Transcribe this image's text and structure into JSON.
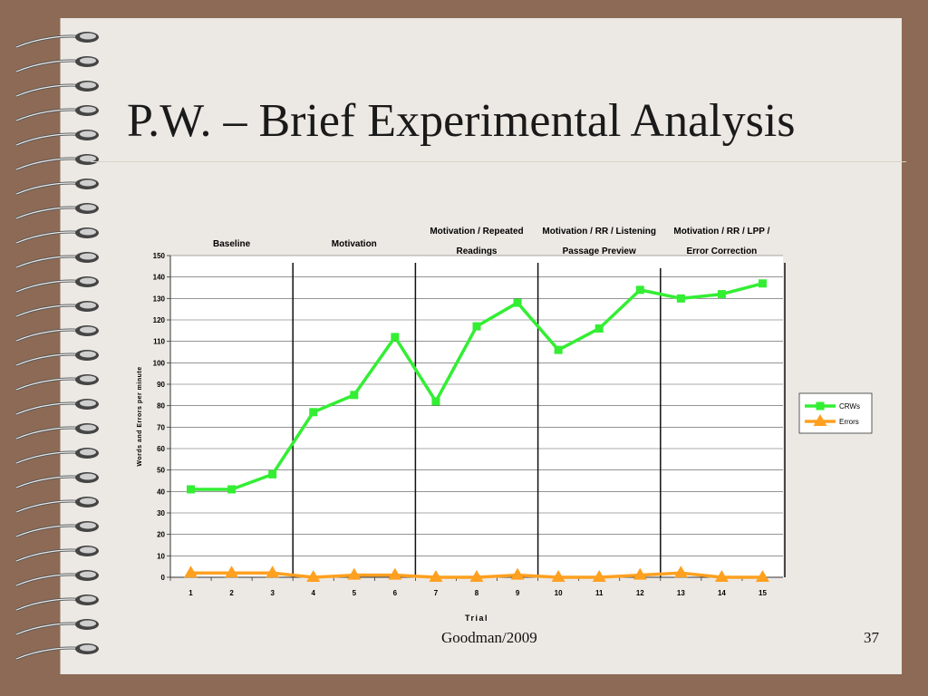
{
  "slide": {
    "title": "P.W. – Brief Experimental Analysis",
    "footer": "Goodman/2009",
    "page_number": "37"
  },
  "colors": {
    "background": "#8c6a55",
    "slide": "#ece9e4",
    "crws": "#33ee33",
    "errors": "#ffa020"
  },
  "chart_data": {
    "type": "line",
    "title": "",
    "xlabel": "Trial",
    "ylabel": "Words and Errors per minute",
    "x": [
      1,
      2,
      3,
      4,
      5,
      6,
      7,
      8,
      9,
      10,
      11,
      12,
      13,
      14,
      15
    ],
    "ylim": [
      0,
      150
    ],
    "yticks": [
      0,
      10,
      20,
      30,
      40,
      50,
      60,
      70,
      80,
      90,
      100,
      110,
      120,
      130,
      140,
      150
    ],
    "grid": true,
    "legend_position": "right",
    "series": [
      {
        "name": "CRWs",
        "marker": "square",
        "values": [
          41,
          41,
          48,
          77,
          85,
          112,
          82,
          117,
          128,
          106,
          116,
          134,
          130,
          132,
          137
        ]
      },
      {
        "name": "Errors",
        "marker": "triangle",
        "values": [
          2,
          2,
          2,
          0,
          1,
          1,
          0,
          0,
          1,
          0,
          0,
          1,
          2,
          0,
          0
        ]
      }
    ],
    "phases": [
      {
        "lines": [
          "Baseline"
        ],
        "start_trial": 1,
        "end_trial": 3
      },
      {
        "lines": [
          "Motivation"
        ],
        "start_trial": 4,
        "end_trial": 6
      },
      {
        "lines": [
          "Motivation / Repeated",
          "Readings"
        ],
        "start_trial": 7,
        "end_trial": 9
      },
      {
        "lines": [
          "Motivation / RR / Listening",
          "Passage Preview"
        ],
        "start_trial": 10,
        "end_trial": 12
      },
      {
        "lines": [
          "Motivation / RR / LPP /",
          "Error Correction"
        ],
        "start_trial": 13,
        "end_trial": 15
      }
    ]
  }
}
